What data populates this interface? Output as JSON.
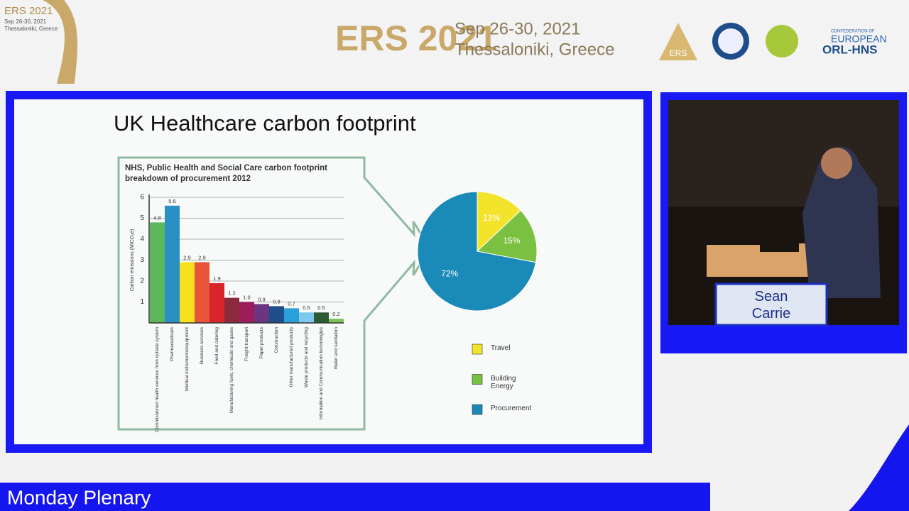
{
  "header": {
    "event": "ERS 2021",
    "dates": "Sep 26-30, 2021",
    "location": "Thessaloniki, Greece",
    "logo_left": {
      "event": "ERS 2021",
      "dates": "Sep 26-30, 2021",
      "location": "Thessaloniki, Greece"
    },
    "logos": {
      "ers": "ERS",
      "confederation": "CONFEDERATION OF",
      "european": "EUROPEAN",
      "orl": "ORL-HNS"
    }
  },
  "slide": {
    "title": "UK Healthcare carbon footprint"
  },
  "chart_data": [
    {
      "type": "bar",
      "title": "NHS, Public Health and Social Care carbon footprint breakdown of procurement 2012",
      "y_label": "Carbon emissions (MtCO₂e)",
      "categories": [
        "Commissioned health services from outside system",
        "Pharmaceuticals",
        "Medical instruments/equipment",
        "Business services",
        "Food and catering",
        "Manufacturing fuels, chemicals and gases",
        "Freight transport",
        "Paper products",
        "Construction",
        "Other manufactured products",
        "Waste products and recycling",
        "Information and Communication technologies",
        "Water and sanitation"
      ],
      "values": [
        4.8,
        5.6,
        2.9,
        2.9,
        1.9,
        1.2,
        1.0,
        0.9,
        0.8,
        0.7,
        0.5,
        0.5,
        0.2
      ],
      "value_labels": [
        "4.8",
        "5.6",
        "2.9",
        "2.9",
        "1.9",
        "1.2",
        "1.0",
        "0.9",
        "0.8",
        "0.7",
        "0.5",
        "0.5",
        "0.2"
      ],
      "colors": [
        "#5cb85c",
        "#2a8fc4",
        "#f5e11c",
        "#e8553a",
        "#d9262a",
        "#8c2a3b",
        "#9c1d5c",
        "#6b3580",
        "#1f4e8c",
        "#2b9fd9",
        "#7cc8ee",
        "#2e5a34",
        "#7dc25a"
      ],
      "ylim": [
        0,
        6
      ],
      "yticks": [
        1,
        2,
        3,
        4,
        5,
        6
      ],
      "grid": true
    },
    {
      "type": "pie",
      "categories": [
        "Travel",
        "Building Energy",
        "Procurement"
      ],
      "values": [
        13,
        15,
        72
      ],
      "value_labels": [
        "13%",
        "15%",
        "72%"
      ],
      "colors": [
        "#f3e32a",
        "#7ac142",
        "#1a8ab8"
      ]
    }
  ],
  "speaker": {
    "name": "Sean Carrie"
  },
  "footer": {
    "session": "Monday Plenary"
  }
}
